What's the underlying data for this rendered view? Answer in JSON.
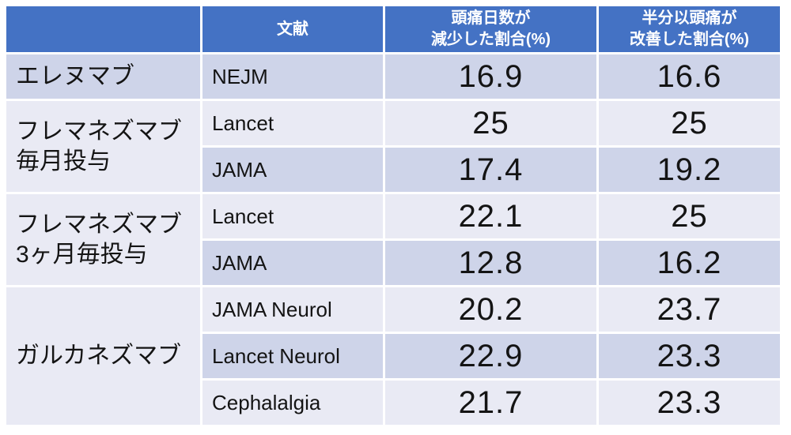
{
  "colors": {
    "header_bg": "#4472C4",
    "header_text": "#FFFFFF",
    "row_band_dark": "#CED4E9",
    "row_band_light": "#E9EAF4",
    "body_text": "#141414",
    "gridline": "#FFFFFF"
  },
  "table": {
    "header": {
      "drug": "",
      "source": "文献",
      "reduction_line1": "頭痛日数が",
      "reduction_line2": "減少した割合(%)",
      "improvement_line1": "半分以頭痛が",
      "improvement_line2": "改善した割合(%)"
    },
    "groups": [
      {
        "drug_lines": [
          "エレヌマブ"
        ],
        "rows": [
          {
            "source": "NEJM",
            "reduction": "16.9",
            "improvement": "16.6"
          }
        ]
      },
      {
        "drug_lines": [
          "フレマネズマブ",
          "毎月投与"
        ],
        "rows": [
          {
            "source": "Lancet",
            "reduction": "25",
            "improvement": "25"
          },
          {
            "source": "JAMA",
            "reduction": "17.4",
            "improvement": "19.2"
          }
        ]
      },
      {
        "drug_lines": [
          "フレマネズマブ",
          "3ヶ月毎投与"
        ],
        "rows": [
          {
            "source": "Lancet",
            "reduction": "22.1",
            "improvement": "25"
          },
          {
            "source": "JAMA",
            "reduction": "12.8",
            "improvement": "16.2"
          }
        ]
      },
      {
        "drug_lines": [
          "ガルカネズマブ"
        ],
        "rows": [
          {
            "source": "JAMA Neurol",
            "reduction": "20.2",
            "improvement": "23.7"
          },
          {
            "source": "Lancet Neurol",
            "reduction": "22.9",
            "improvement": "23.3"
          },
          {
            "source": "Cephalalgia",
            "reduction": "21.7",
            "improvement": "23.3"
          }
        ]
      }
    ]
  },
  "chart_data": {
    "type": "table",
    "columns": [
      "",
      "文献",
      "頭痛日数が減少した割合(%)",
      "半分以頭痛が改善した割合(%)"
    ],
    "rows": [
      [
        "エレヌマブ",
        "NEJM",
        16.9,
        16.6
      ],
      [
        "フレマネズマブ毎月投与",
        "Lancet",
        25,
        25
      ],
      [
        "フレマネズマブ毎月投与",
        "JAMA",
        17.4,
        19.2
      ],
      [
        "フレマネズマブ3ヶ月毎投与",
        "Lancet",
        22.1,
        25
      ],
      [
        "フレマネズマブ3ヶ月毎投与",
        "JAMA",
        12.8,
        16.2
      ],
      [
        "ガルカネズマブ",
        "JAMA Neurol",
        20.2,
        23.7
      ],
      [
        "ガルカネズマブ",
        "Lancet Neurol",
        22.9,
        23.3
      ],
      [
        "ガルカネズマブ",
        "Cephalalgia",
        21.7,
        23.3
      ]
    ],
    "layout": {
      "banded_rows": true,
      "header_fill": "#4472C4",
      "merged_first_column_groups": [
        1,
        2,
        2,
        3
      ]
    }
  }
}
